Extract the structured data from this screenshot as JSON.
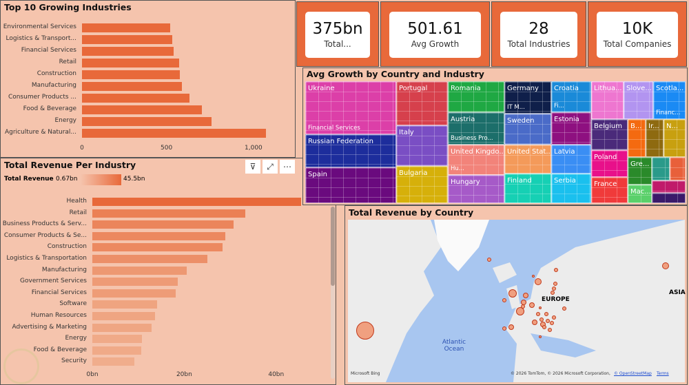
{
  "kpis": [
    {
      "value": "375bn",
      "caption": "Total..."
    },
    {
      "value": "501.61",
      "caption": "Avg Growth"
    },
    {
      "value": "28",
      "caption": "Total Industries"
    },
    {
      "value": "10K",
      "caption": "Total Companies"
    }
  ],
  "colors": {
    "accent": "#e8693a",
    "background": "#f4c4ac",
    "bar_light": "#f2b497"
  },
  "chart_data": [
    {
      "type": "bar",
      "orientation": "horizontal",
      "title": "Top 10 Growing Industries",
      "categories": [
        "Environmental Services",
        "Logistics & Transport...",
        "Financial Services",
        "Retail",
        "Construction",
        "Manufacturing",
        "Consumer Products ...",
        "Food & Beverage",
        "Energy",
        "Agriculture & Natural..."
      ],
      "values": [
        525,
        538,
        545,
        577,
        580,
        595,
        640,
        712,
        772,
        1093
      ],
      "xticks": [
        "0",
        "500",
        "1,000"
      ],
      "xlim": [
        0,
        1200
      ]
    },
    {
      "type": "bar",
      "orientation": "horizontal",
      "title": "Total Revenue Per Industry",
      "legend": {
        "label": "Total Revenue",
        "min": "0.67bn",
        "max": "45.5bn"
      },
      "categories": [
        "Health",
        "Retail",
        "Business Products & Serv...",
        "Consumer Products & Se...",
        "Construction",
        "Logistics & Transportation",
        "Manufacturing",
        "Government Services",
        "Financial Services",
        "Software",
        "Human Resources",
        "Advertising & Marketing",
        "Energy",
        "Food & Beverage",
        "Security"
      ],
      "values": [
        45.5,
        33.3,
        30.7,
        29.0,
        28.4,
        25.1,
        20.5,
        18.6,
        18.1,
        14.1,
        13.6,
        12.9,
        10.8,
        10.6,
        9.1
      ],
      "unit": "bn",
      "xticks": [
        "0bn",
        "20bn",
        "40bn"
      ],
      "xlim": [
        0,
        46
      ]
    },
    {
      "type": "treemap",
      "title": "Avg Growth by Country and Industry",
      "items": [
        {
          "name": "Ukraine",
          "sub": "Financial Services",
          "color": "#dc3fa8"
        },
        {
          "name": "Russian Federation",
          "sub": "",
          "color": "#1d2d9c"
        },
        {
          "name": "Spain",
          "sub": "",
          "color": "#6a0a7e"
        },
        {
          "name": "Portugal",
          "sub": "",
          "color": "#d6404c"
        },
        {
          "name": "Italy",
          "sub": "",
          "color": "#7a4ec4"
        },
        {
          "name": "Bulgaria",
          "sub": "",
          "color": "#d6b00a"
        },
        {
          "name": "Romania",
          "sub": "",
          "color": "#1fa843"
        },
        {
          "name": "Austria",
          "sub": "Business Pro...",
          "color": "#1c6e6a"
        },
        {
          "name": "United Kingdo...",
          "sub": "Hu...",
          "color": "#f2837a"
        },
        {
          "name": "Hungary",
          "sub": "",
          "color": "#a65ac8"
        },
        {
          "name": "Germany",
          "sub": "IT M...",
          "color": "#0f1f4a"
        },
        {
          "name": "Sweden",
          "sub": "",
          "color": "#4a6bc8"
        },
        {
          "name": "United Stat...",
          "sub": "",
          "color": "#f49a5a"
        },
        {
          "name": "Finland",
          "sub": "",
          "color": "#16d0b4"
        },
        {
          "name": "Croatia",
          "sub": "Fi...",
          "color": "#1a8ad8"
        },
        {
          "name": "Estonia",
          "sub": "",
          "color": "#8e1080"
        },
        {
          "name": "Latvia",
          "sub": "",
          "color": "#3a8ef4"
        },
        {
          "name": "Serbia",
          "sub": "",
          "color": "#1ac0ee"
        },
        {
          "name": "Lithua...",
          "sub": "",
          "color": "#ee76d0"
        },
        {
          "name": "Slove...",
          "sub": "",
          "color": "#b294f0"
        },
        {
          "name": "Scotla...",
          "sub": "Financ...",
          "color": "#1a8af4"
        },
        {
          "name": "Belgium",
          "sub": "",
          "color": "#4a2a7a"
        },
        {
          "name": "B...",
          "sub": "",
          "color": "#f46a10"
        },
        {
          "name": "Ir...",
          "sub": "",
          "color": "#8e6a10"
        },
        {
          "name": "N...",
          "sub": "",
          "color": "#c8a010"
        },
        {
          "name": "Poland",
          "sub": "",
          "color": "#e8108a"
        },
        {
          "name": "France",
          "sub": "",
          "color": "#f03a3a"
        },
        {
          "name": "Gre...",
          "sub": "",
          "color": "#2a8a2a"
        },
        {
          "name": "Mac...",
          "sub": "",
          "color": "#5ad06a"
        },
        {
          "name": "",
          "sub": "",
          "color": "#2a9a8a"
        },
        {
          "name": "",
          "sub": "",
          "color": "#e8603a"
        },
        {
          "name": "",
          "sub": "",
          "color": "#c01a6a"
        },
        {
          "name": "",
          "sub": "",
          "color": "#3a1a6a"
        }
      ]
    },
    {
      "type": "map",
      "title": "Total Revenue by Country",
      "labels": {
        "europe": "EUROPE",
        "asia": "ASIA",
        "ocean": "Atlantic Ocean"
      },
      "attribution": "© 2026 TomTom, © 2026 Microsoft Corporation,",
      "osm": "© OpenStreetMap",
      "terms": "Terms",
      "brand": "Microsoft Bing"
    }
  ]
}
